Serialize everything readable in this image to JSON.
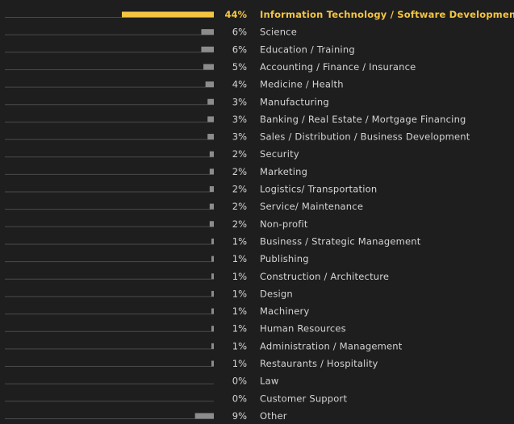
{
  "chart_data": {
    "type": "bar",
    "orientation": "horizontal",
    "value_suffix": "%",
    "highlight_color": "#f5c542",
    "bar_color": "#8c8c8c",
    "background": "#1e1e1e",
    "categories": [
      "Information Technology / Software Development",
      "Science",
      "Education / Training",
      "Accounting / Finance / Insurance",
      "Medicine / Health",
      "Manufacturing",
      "Banking / Real Estate / Mortgage Financing",
      "Sales / Distribution / Business Development",
      "Security",
      "Marketing",
      "Logistics/ Transportation",
      "Service/ Maintenance",
      "Non-profit",
      "Business / Strategic Management",
      "Publishing",
      "Construction / Architecture",
      "Design",
      "Machinery",
      "Human Resources",
      "Administration / Management",
      "Restaurants / Hospitality",
      "Law",
      "Customer Support",
      "Other"
    ],
    "values": [
      44,
      6,
      6,
      5,
      4,
      3,
      3,
      3,
      2,
      2,
      2,
      2,
      2,
      1,
      1,
      1,
      1,
      1,
      1,
      1,
      1,
      0,
      0,
      9
    ],
    "highlight_index": 0,
    "xlim": [
      0,
      44
    ]
  }
}
